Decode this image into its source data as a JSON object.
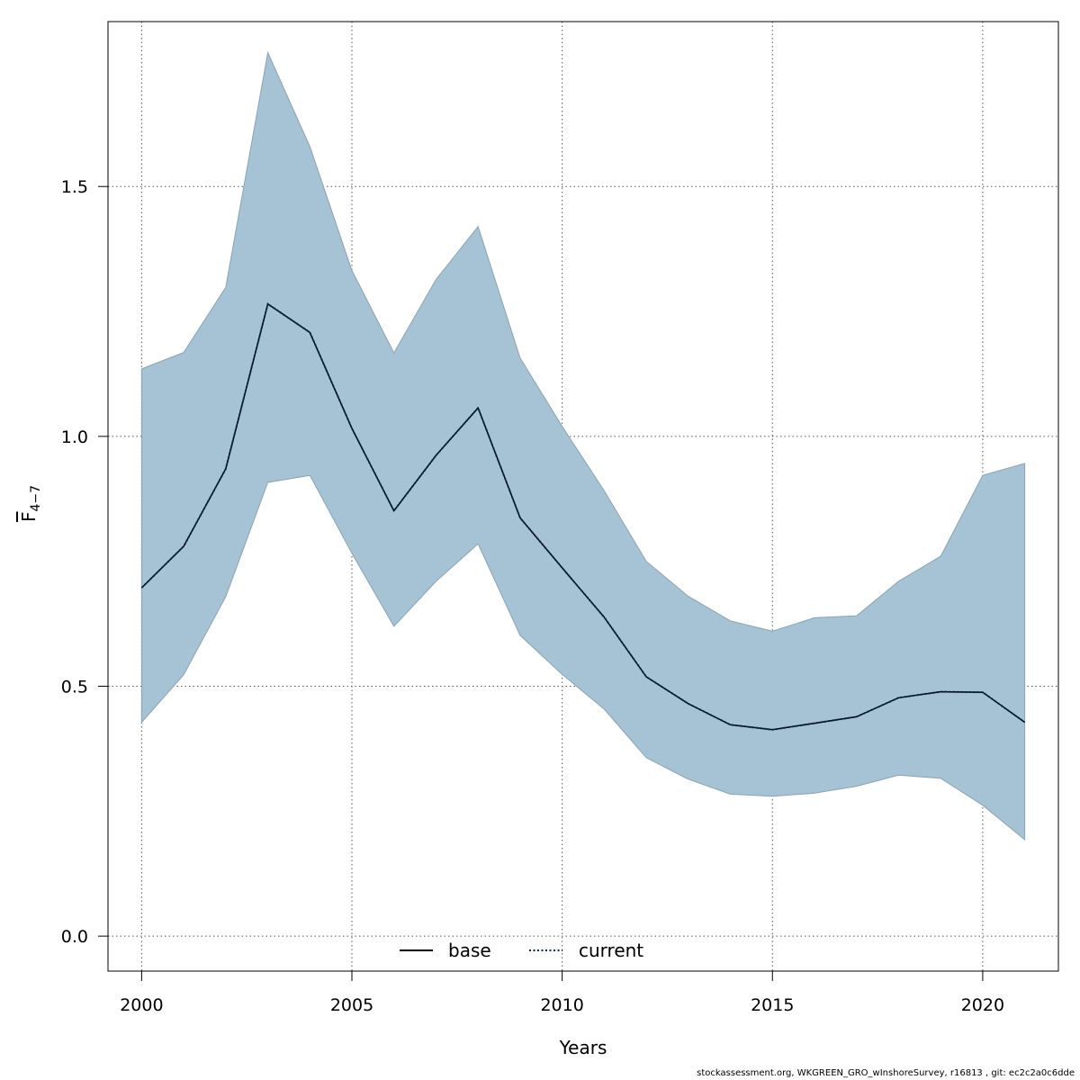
{
  "chart_data": {
    "type": "line",
    "xlabel": "Years",
    "ylabel": "F",
    "ylabel_subscript": "4−7",
    "xlim": [
      1999.2,
      2021.8
    ],
    "ylim": [
      -0.07,
      1.83
    ],
    "x_ticks": [
      "2000",
      "2005",
      "2010",
      "2015",
      "2020"
    ],
    "y_ticks": [
      "0.0",
      "0.5",
      "1.0",
      "1.5"
    ],
    "grid": true,
    "legend_position": "bottom-center",
    "band_color": "#a5c3d4",
    "band_edge_color": "#8aa3b3",
    "x": [
      2000,
      2001,
      2002,
      2003,
      2004,
      2005,
      2006,
      2007,
      2008,
      2009,
      2010,
      2011,
      2012,
      2013,
      2014,
      2015,
      2016,
      2017,
      2018,
      2019,
      2020,
      2021
    ],
    "upper": [
      1.135,
      1.168,
      1.298,
      1.768,
      1.58,
      1.332,
      1.167,
      1.314,
      1.42,
      1.157,
      1.02,
      0.891,
      0.75,
      0.68,
      0.631,
      0.61,
      0.637,
      0.641,
      0.71,
      0.76,
      0.922,
      0.946
    ],
    "lower": [
      0.428,
      0.523,
      0.679,
      0.908,
      0.922,
      0.766,
      0.62,
      0.71,
      0.785,
      0.602,
      0.524,
      0.454,
      0.357,
      0.314,
      0.284,
      0.28,
      0.286,
      0.3,
      0.322,
      0.316,
      0.262,
      0.193
    ],
    "series": [
      {
        "name": "base",
        "style": "solid",
        "color": "#000000",
        "values": [
          0.697,
          0.78,
          0.935,
          1.265,
          1.208,
          1.016,
          0.851,
          0.962,
          1.057,
          0.837,
          0.737,
          0.638,
          0.519,
          0.465,
          0.423,
          0.413,
          0.426,
          0.439,
          0.477,
          0.489,
          0.488,
          0.428
        ]
      },
      {
        "name": "current",
        "style": "dotted",
        "color": "#002b4d",
        "values": [
          0.697,
          0.78,
          0.935,
          1.265,
          1.208,
          1.016,
          0.851,
          0.962,
          1.057,
          0.837,
          0.737,
          0.638,
          0.519,
          0.465,
          0.423,
          0.413,
          0.426,
          0.439,
          0.477,
          0.489,
          0.488,
          0.428
        ]
      }
    ]
  },
  "footer": "stockassessment.org, WKGREEN_GRO_wInshoreSurvey, r16813 , git: ec2c2a0c6dde"
}
